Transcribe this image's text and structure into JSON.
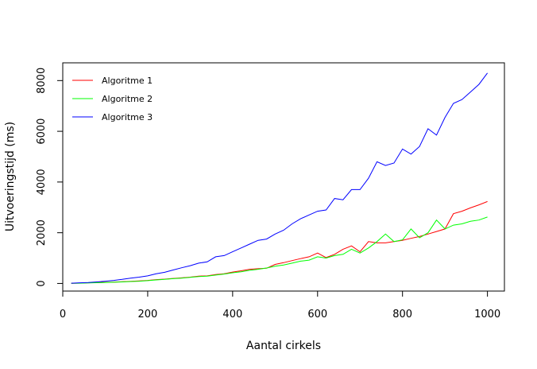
{
  "chart_data": {
    "type": "line",
    "xlabel": "Aantal cirkels",
    "ylabel": "Uitvoeringstijd (ms)",
    "xlim": [
      0,
      1040
    ],
    "ylim": [
      -300,
      8700
    ],
    "x_ticks": [
      0,
      200,
      400,
      600,
      800,
      1000
    ],
    "y_ticks": [
      0,
      2000,
      4000,
      6000,
      8000
    ],
    "legend_position": "top-left",
    "grid": false,
    "x": [
      20,
      40,
      60,
      80,
      100,
      120,
      140,
      160,
      180,
      200,
      220,
      240,
      260,
      280,
      300,
      320,
      340,
      360,
      380,
      400,
      420,
      440,
      460,
      480,
      500,
      520,
      540,
      560,
      580,
      600,
      620,
      640,
      660,
      680,
      700,
      720,
      740,
      760,
      780,
      800,
      820,
      840,
      860,
      880,
      900,
      920,
      940,
      960,
      980,
      1000
    ],
    "series": [
      {
        "name": "Algoritme 1",
        "color": "#ff0000",
        "values": [
          5,
          15,
          25,
          35,
          45,
          55,
          70,
          85,
          100,
          120,
          150,
          170,
          200,
          220,
          250,
          290,
          300,
          350,
          380,
          450,
          500,
          560,
          580,
          600,
          750,
          820,
          900,
          980,
          1050,
          1200,
          1020,
          1150,
          1350,
          1480,
          1250,
          1650,
          1600,
          1600,
          1650,
          1700,
          1780,
          1850,
          1950,
          2050,
          2150,
          2750,
          2850,
          2980,
          3100,
          3230
        ]
      },
      {
        "name": "Algoritme 2",
        "color": "#00ff00",
        "values": [
          5,
          12,
          20,
          28,
          36,
          48,
          60,
          75,
          90,
          110,
          140,
          165,
          190,
          210,
          240,
          270,
          290,
          330,
          370,
          420,
          460,
          520,
          560,
          610,
          680,
          730,
          800,
          880,
          920,
          1050,
          1000,
          1100,
          1150,
          1350,
          1200,
          1400,
          1650,
          1950,
          1650,
          1720,
          2150,
          1800,
          2000,
          2500,
          2150,
          2300,
          2350,
          2450,
          2500,
          2620
        ]
      },
      {
        "name": "Algoritme 3",
        "color": "#0000ff",
        "values": [
          10,
          25,
          40,
          60,
          90,
          120,
          160,
          210,
          250,
          300,
          380,
          440,
          530,
          620,
          700,
          800,
          850,
          1050,
          1100,
          1250,
          1400,
          1550,
          1700,
          1750,
          1950,
          2100,
          2350,
          2550,
          2700,
          2850,
          2900,
          3350,
          3300,
          3700,
          3700,
          4150,
          4800,
          4650,
          4750,
          5300,
          5100,
          5400,
          6100,
          5850,
          6550,
          7100,
          7250,
          7550,
          7850,
          8300
        ]
      }
    ]
  }
}
